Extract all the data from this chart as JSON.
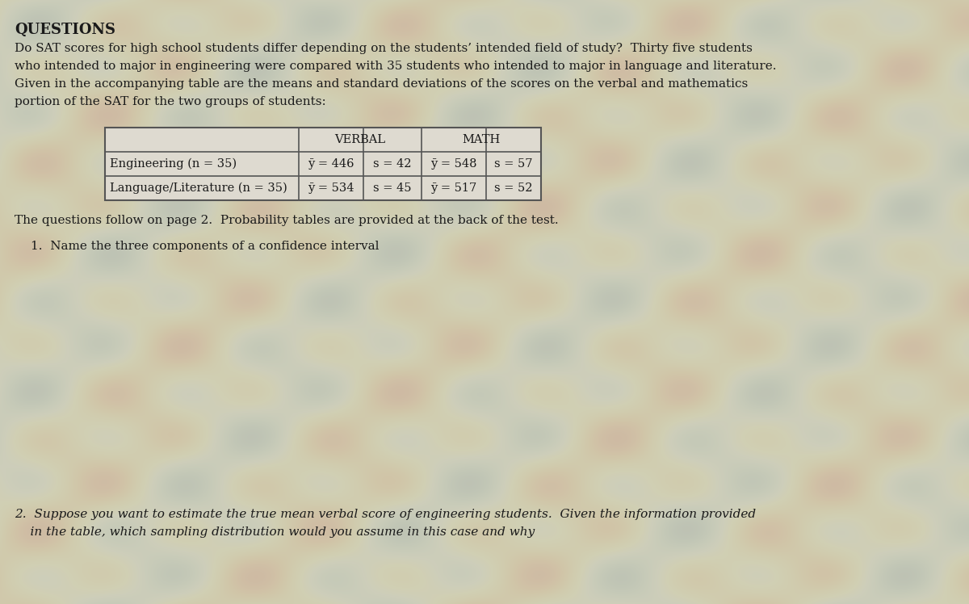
{
  "title": "QUESTIONS",
  "intro_text": "Do SAT scores for high school students differ depending on the students’ intended field of study?  Thirty five students\nwho intended to major in engineering were compared with 35 students who intended to major in language and literature.\nGiven in the accompanying table are the means and standard deviations of the scores on the verbal and mathematics\nportion of the SAT for the two groups of students:",
  "row1_label": "Engineering (n = 35)",
  "row1_verbal_mean": "446",
  "row1_verbal_sd": "42",
  "row1_math_mean": "548",
  "row1_math_sd": "57",
  "row2_label": "Language/Literature (n = 35)",
  "row2_verbal_mean": "534",
  "row2_verbal_sd": "45",
  "row2_math_mean": "517",
  "row2_math_sd": "52",
  "note_text": "The questions follow on page 2.  Probability tables are provided at the back of the test.",
  "q1_text": "1.  Name the three components of a confidence interval",
  "q2_line1": "2.  Suppose you want to estimate the true mean verbal score of engineering students.  Given the information provided",
  "q2_line2": "    in the table, which sampling distribution would you assume in this case and why",
  "bg_color": "#cbc9b2",
  "table_bg": "#dedad0",
  "text_color": "#1a1a1a",
  "font_size_title": 13,
  "font_size_body": 11,
  "font_size_table": 10.5
}
